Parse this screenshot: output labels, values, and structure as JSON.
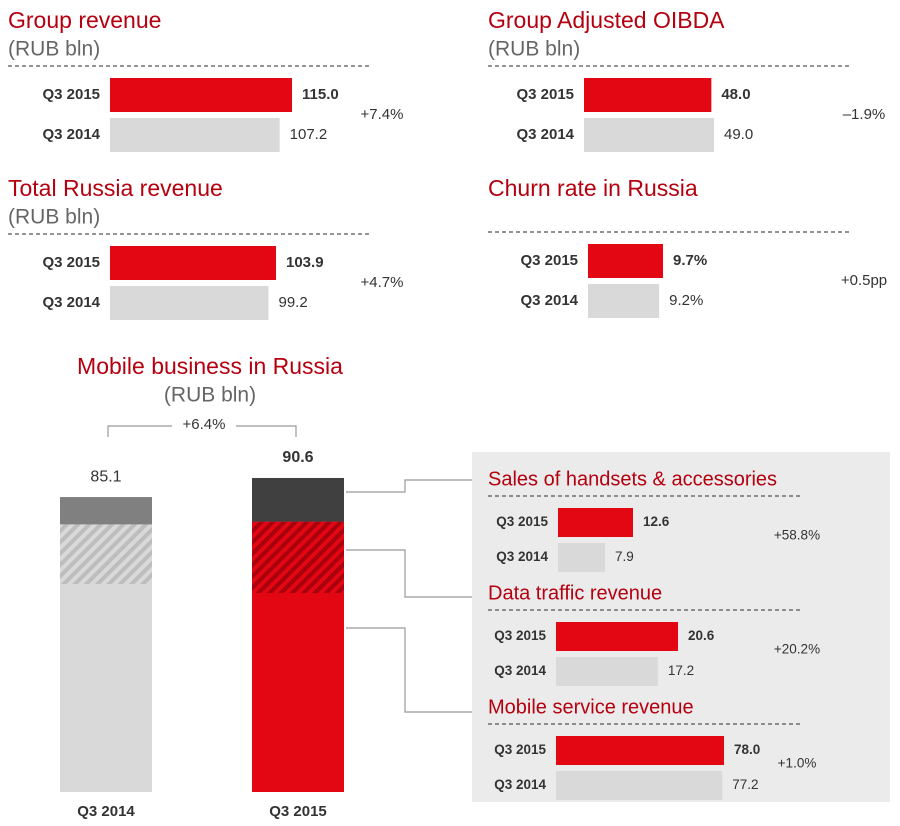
{
  "chart_data": [
    {
      "type": "hbar",
      "title": "Group revenue",
      "subtitle": "(RUB bln)",
      "categories": [
        "Q3 2015",
        "Q3 2014"
      ],
      "values": [
        115.0,
        107.2
      ],
      "value_labels": [
        "115.0",
        "107.2"
      ],
      "colors": [
        "#e30613",
        "#d9d9d9"
      ],
      "change": "+7.4%"
    },
    {
      "type": "hbar",
      "title": "Group Adjusted OIBDA",
      "subtitle": "(RUB bln)",
      "categories": [
        "Q3 2015",
        "Q3 2014"
      ],
      "values": [
        48.0,
        49.0
      ],
      "value_labels": [
        "48.0",
        "49.0"
      ],
      "colors": [
        "#e30613",
        "#d9d9d9"
      ],
      "change": "–1.9%"
    },
    {
      "type": "hbar",
      "title": "Total Russia revenue",
      "subtitle": "(RUB bln)",
      "categories": [
        "Q3 2015",
        "Q3 2014"
      ],
      "values": [
        103.9,
        99.2
      ],
      "value_labels": [
        "103.9",
        "99.2"
      ],
      "colors": [
        "#e30613",
        "#d9d9d9"
      ],
      "change": "+4.7%"
    },
    {
      "type": "hbar",
      "title": "Churn rate in Russia",
      "categories": [
        "Q3 2015",
        "Q3 2014"
      ],
      "values": [
        9.7,
        9.2
      ],
      "value_labels": [
        "9.7%",
        "9.2%"
      ],
      "colors": [
        "#e30613",
        "#d9d9d9"
      ],
      "change": "+0.5pp"
    },
    {
      "type": "stacked",
      "title": "Mobile business in Russia",
      "subtitle": "(RUB bln)",
      "categories": [
        "Q3 2014",
        "Q3 2015"
      ],
      "totals": [
        85.1,
        90.6
      ],
      "change": "+6.4%",
      "colors": [
        [
          "#d9d9d9",
          "#bdbdbd",
          "#808080"
        ],
        [
          "#e30613",
          "#a8000c",
          "#404040"
        ]
      ]
    },
    {
      "type": "hbar",
      "title": "Sales of handsets & accessories",
      "categories": [
        "Q3 2015",
        "Q3 2014"
      ],
      "values": [
        12.6,
        7.9
      ],
      "value_labels": [
        "12.6",
        "7.9"
      ],
      "colors": [
        "#e30613",
        "#d9d9d9"
      ],
      "change": "+58.8%"
    },
    {
      "type": "hbar",
      "title": "Data traffic revenue",
      "categories": [
        "Q3 2015",
        "Q3 2014"
      ],
      "values": [
        20.6,
        17.2
      ],
      "value_labels": [
        "20.6",
        "17.2"
      ],
      "colors": [
        "#e30613",
        "#d9d9d9"
      ],
      "change": "+20.2%"
    },
    {
      "type": "hbar",
      "title": "Mobile service revenue",
      "categories": [
        "Q3 2015",
        "Q3 2014"
      ],
      "values": [
        78.0,
        77.2
      ],
      "value_labels": [
        "78.0",
        "77.2"
      ],
      "colors": [
        "#e30613",
        "#d9d9d9"
      ],
      "change": "+1.0%"
    }
  ]
}
